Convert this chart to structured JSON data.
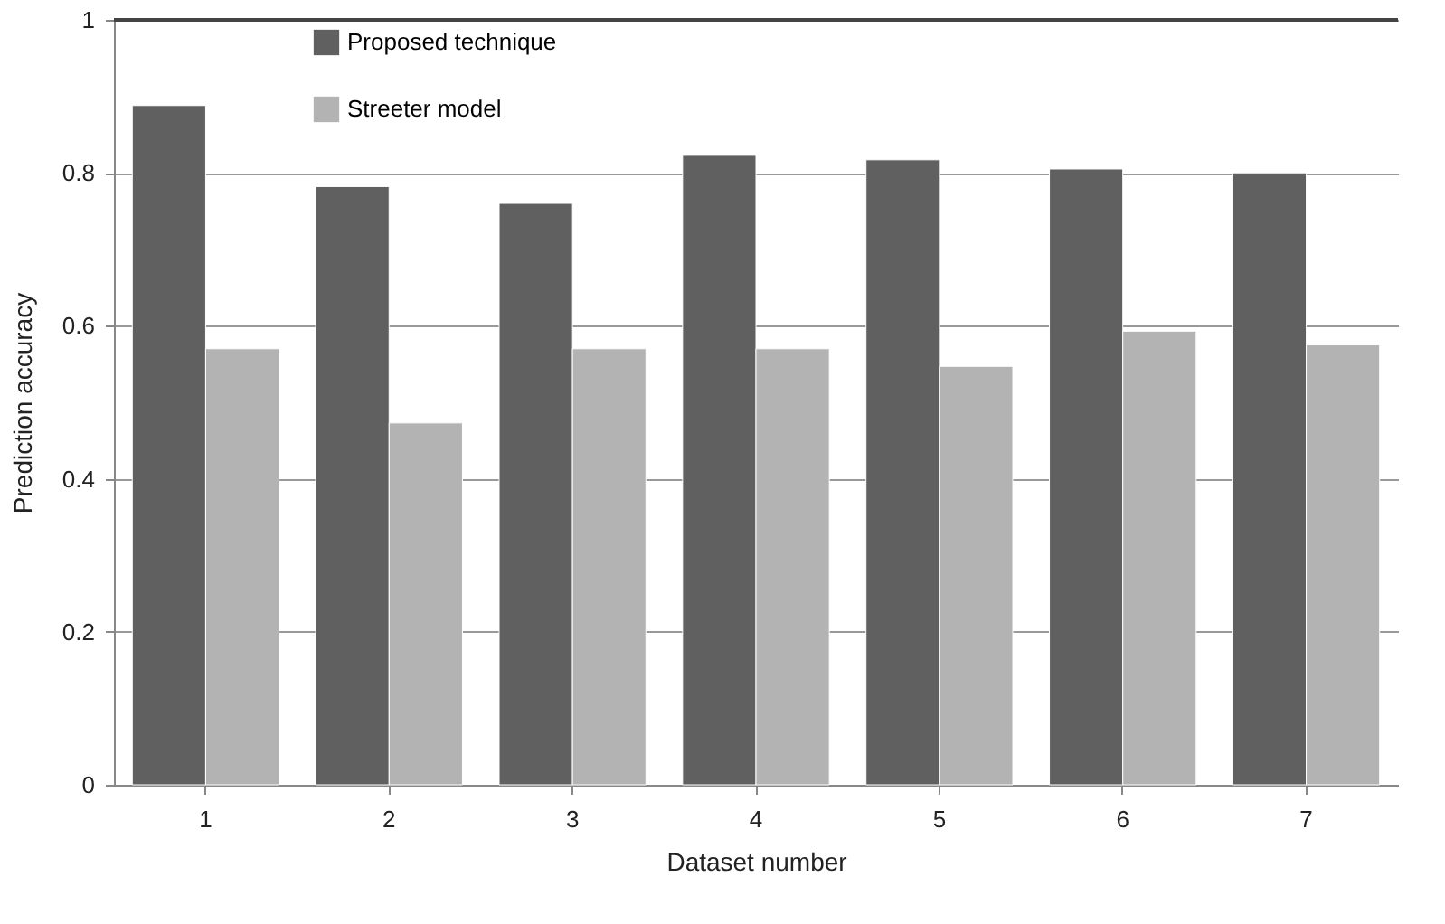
{
  "chart_data": {
    "type": "bar",
    "xlabel": "Dataset number",
    "ylabel": "Prediction accuracy",
    "categories": [
      "1",
      "2",
      "3",
      "4",
      "5",
      "6",
      "7"
    ],
    "series": [
      {
        "name": "Proposed technique",
        "color": "#606060",
        "values": [
          0.888,
          0.782,
          0.76,
          0.824,
          0.817,
          0.805,
          0.8
        ]
      },
      {
        "name": "Streeter model",
        "color": "#b3b3b3",
        "values": [
          0.57,
          0.473,
          0.57,
          0.57,
          0.547,
          0.593,
          0.575
        ]
      }
    ],
    "ylim": [
      0,
      1
    ],
    "yticks": [
      0,
      0.2,
      0.4,
      0.6,
      0.8,
      1
    ],
    "grid": "y",
    "legend": "top left"
  }
}
